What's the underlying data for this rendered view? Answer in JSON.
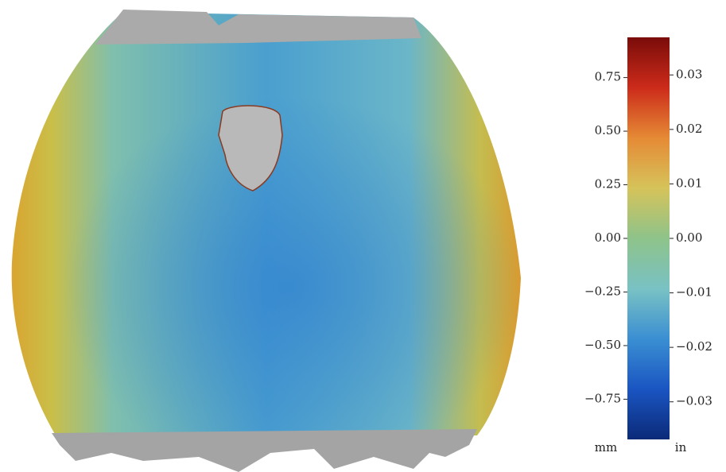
{
  "chart_data": {
    "type": "colorbar",
    "colors": [
      "#0b2a78",
      "#1a55c2",
      "#3a8fd2",
      "#79c2c4",
      "#8ec38a",
      "#d6c35a",
      "#e58a35",
      "#cc2b1a",
      "#7a0c0a"
    ],
    "ylim": [
      -0.9375,
      0.9375
    ],
    "yticks": [
      {
        "value": -0.75,
        "label": "−0.75"
      },
      {
        "value": -0.5,
        "label": "−0.50"
      },
      {
        "value": -0.25,
        "label": "−0.25"
      },
      {
        "value": 0,
        "label": "0.00"
      },
      {
        "value": 0.25,
        "label": "0.25"
      },
      {
        "value": 0.5,
        "label": "0.50"
      },
      {
        "value": 0.75,
        "label": "0.75"
      }
    ],
    "ylabel": "mm",
    "y2lim": [
      -0.0369,
      0.0369
    ],
    "y2ticks": [
      {
        "value": -0.03,
        "label": "−0.03"
      },
      {
        "value": -0.02,
        "label": "−0.02"
      },
      {
        "value": -0.01,
        "label": "−0.01"
      },
      {
        "value": 0,
        "label": "0.00"
      },
      {
        "value": 0.01,
        "label": "0.01"
      },
      {
        "value": 0.02,
        "label": "0.02"
      },
      {
        "value": 0.03,
        "label": "0.03"
      }
    ],
    "y2label": "in"
  }
}
